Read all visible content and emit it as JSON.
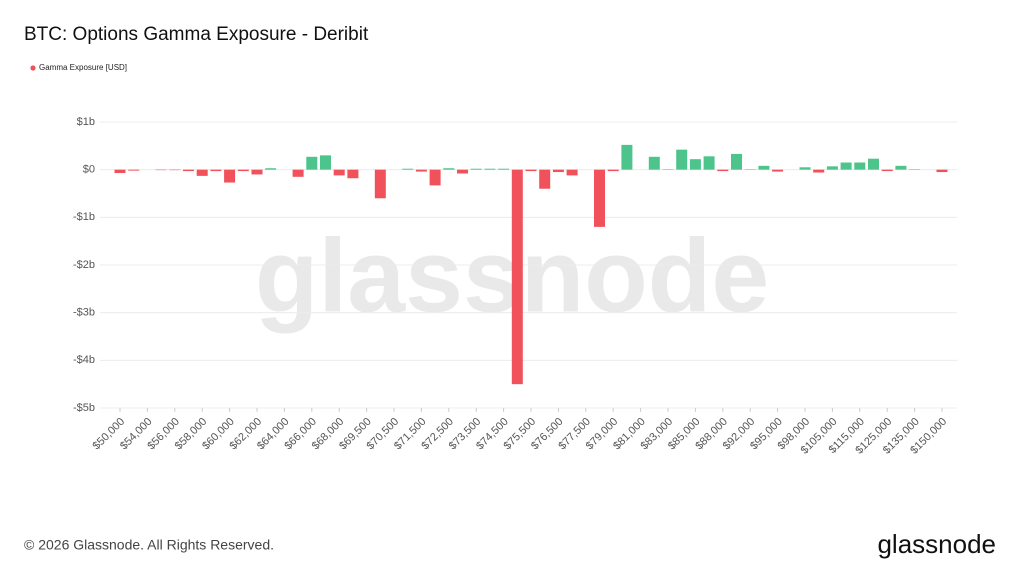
{
  "chart_data": {
    "type": "bar",
    "title": "BTC: Options Gamma Exposure - Deribit",
    "watermark": "glassnode",
    "footer": "© 2026 Glassnode. All Rights Reserved.",
    "logo": "glassnode",
    "categories": [
      "$50,000",
      null,
      "$54,000",
      null,
      "$56,000",
      null,
      "$58,000",
      null,
      "$60,000",
      null,
      "$62,000",
      null,
      "$64,000",
      null,
      "$66,000",
      null,
      "$68,000",
      null,
      "$69,500",
      null,
      "$70,500",
      null,
      "$71,500",
      null,
      "$72,500",
      null,
      "$73,500",
      null,
      "$74,500",
      null,
      "$75,500",
      null,
      "$76,500",
      null,
      "$77,500",
      null,
      "$79,000",
      null,
      "$81,000",
      null,
      "$83,000",
      null,
      "$85,000",
      null,
      "$88,000",
      null,
      "$92,000",
      null,
      "$95,000",
      null,
      "$98,000",
      null,
      "$105,000",
      null,
      "$115,000",
      null,
      "$125,000",
      null,
      "$135,000",
      null,
      "$150,000"
    ],
    "series": [
      {
        "name": "Gamma Exposure [USD]",
        "positive_color": "#4cc48c",
        "negative_color": "#f0515a",
        "values": [
          -0.07,
          -0.02,
          0,
          -0.01,
          -0.01,
          -0.03,
          -0.13,
          -0.03,
          -0.27,
          -0.03,
          -0.1,
          0.03,
          0,
          -0.15,
          0.27,
          0.3,
          -0.12,
          -0.18,
          0,
          -0.6,
          0,
          0.02,
          -0.04,
          -0.33,
          0.03,
          -0.08,
          0.02,
          0.02,
          0.02,
          -4.5,
          -0.03,
          -0.4,
          -0.05,
          -0.12,
          0,
          -1.2,
          -0.03,
          0.52,
          0,
          0.27,
          0.01,
          0.42,
          0.22,
          0.28,
          -0.03,
          0.33,
          0.01,
          0.08,
          -0.04,
          0,
          0.05,
          -0.06,
          0.07,
          0.15,
          0.15,
          0.23,
          -0.03,
          0.08,
          0.01,
          0,
          -0.05
        ]
      }
    ],
    "ylim": [
      -5,
      1
    ],
    "yticks": [
      {
        "value": 1,
        "label": "$1b"
      },
      {
        "value": 0,
        "label": "$0"
      },
      {
        "value": -1,
        "label": "-$1b"
      },
      {
        "value": -2,
        "label": "-$2b"
      },
      {
        "value": -3,
        "label": "-$3b"
      },
      {
        "value": -4,
        "label": "-$4b"
      },
      {
        "value": -5,
        "label": "-$5b"
      }
    ],
    "grid": true
  }
}
